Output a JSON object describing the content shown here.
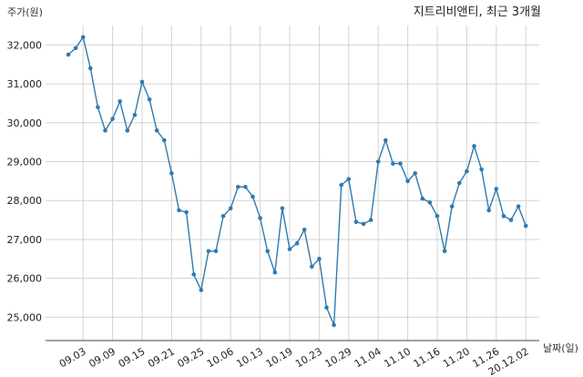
{
  "chart_data": {
    "type": "line",
    "title": "지트리비앤티, 최근 3개월",
    "ylabel": "주가(원)",
    "xlabel": "날짜(일)",
    "ylim": [
      24400,
      32500
    ],
    "yticks": [
      25000,
      26000,
      27000,
      28000,
      29000,
      30000,
      31000,
      32000
    ],
    "ytick_labels": [
      "25,000",
      "26,000",
      "27,000",
      "28,000",
      "29,000",
      "30,000",
      "31,000",
      "32,000"
    ],
    "xtick_labels": [
      "09.03",
      "09.09",
      "09.15",
      "09.21",
      "09.25",
      "10.06",
      "10.13",
      "10.19",
      "10.23",
      "10.29",
      "11.04",
      "11.10",
      "11.16",
      "11.20",
      "11.26",
      "20.12.02"
    ],
    "xtick_indices": [
      2,
      6,
      10,
      14,
      18,
      22,
      26,
      30,
      34,
      38,
      42,
      46,
      50,
      54,
      58,
      62
    ],
    "grid": true,
    "line_color": "#2f7ab0",
    "series": [
      {
        "values": [
          31750,
          31920,
          32200,
          31400,
          30400,
          29800,
          30100,
          30550,
          29800,
          30200,
          31050,
          30600,
          29800,
          29550,
          28700,
          27750,
          27700,
          26100,
          25700,
          26700,
          26700,
          27600,
          27800,
          28350,
          28350,
          28100,
          27550,
          26700,
          26150,
          27800,
          26750,
          26900,
          27250,
          26300,
          26500,
          25250,
          24800,
          28400,
          28550,
          27450,
          27400,
          27500,
          29000,
          29550,
          28950,
          28950,
          28500,
          28700,
          28050,
          27950,
          27600,
          26700,
          27850,
          28450,
          28750,
          29400,
          28800,
          27750,
          28300,
          27600,
          27500,
          27850,
          27350
        ]
      }
    ]
  }
}
